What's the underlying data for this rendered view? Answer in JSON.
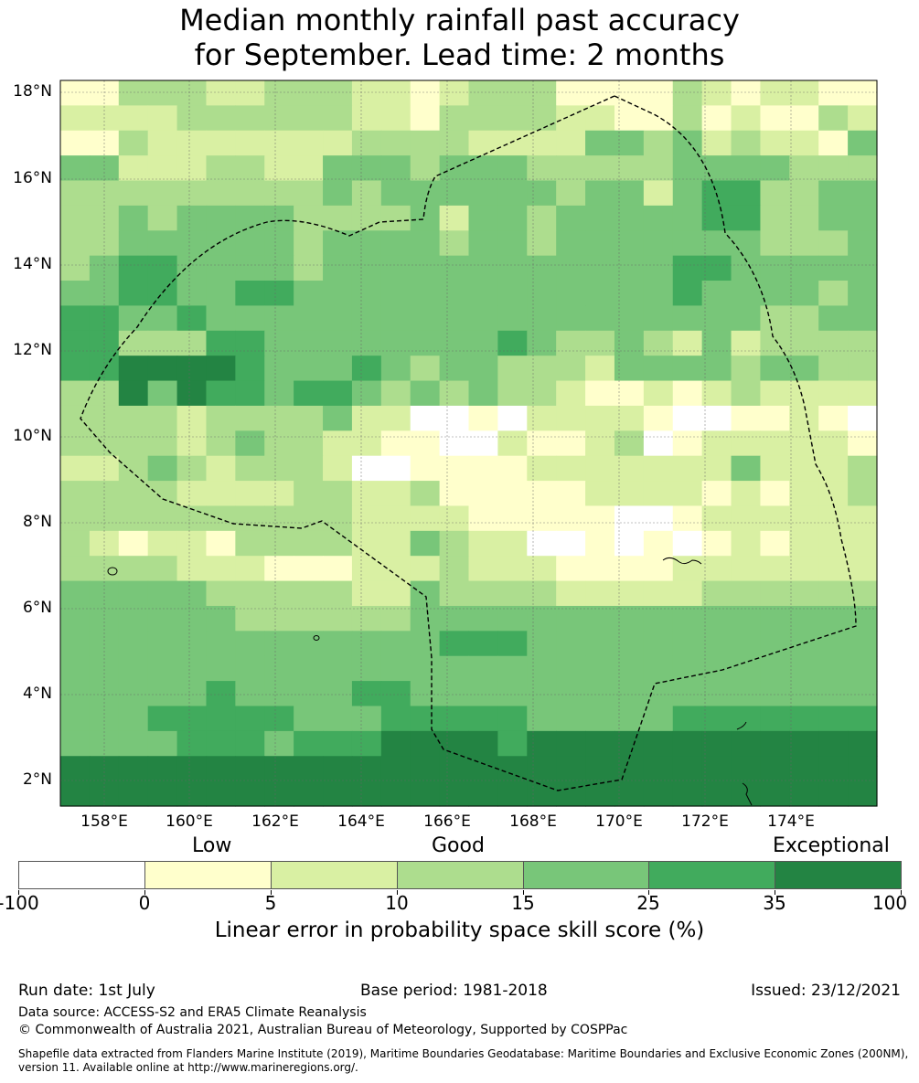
{
  "title": {
    "line1": "Median monthly rainfall past accuracy",
    "line2": "for September. Lead time: 2 months"
  },
  "map": {
    "lat_labels": [
      "18°N",
      "16°N",
      "14°N",
      "12°N",
      "10°N",
      "8°N",
      "6°N",
      "4°N",
      "2°N"
    ],
    "lon_labels": [
      "158°E",
      "160°E",
      "162°E",
      "164°E",
      "166°E",
      "168°E",
      "170°E",
      "172°E",
      "174°E"
    ],
    "boundary": "dashed EEZ outline (Marshall Islands)",
    "grid": "dotted graticule every 2°"
  },
  "legend": {
    "categories": [
      "Low",
      "Good",
      "Exceptional"
    ],
    "bins": [
      {
        "from": "-100",
        "to": "0",
        "color": "#ffffff"
      },
      {
        "from": "0",
        "to": "5",
        "color": "#ffffcc"
      },
      {
        "from": "5",
        "to": "10",
        "color": "#d9f0a3"
      },
      {
        "from": "10",
        "to": "15",
        "color": "#addd8e"
      },
      {
        "from": "15",
        "to": "25",
        "color": "#78c679"
      },
      {
        "from": "25",
        "to": "35",
        "color": "#41ab5d"
      },
      {
        "from": "35",
        "to": "100",
        "color": "#238443"
      }
    ],
    "tick_labels": [
      "-100",
      "0",
      "5",
      "10",
      "15",
      "25",
      "35",
      "100"
    ],
    "axis_title": "Linear error in probability space skill score (%)"
  },
  "footer": {
    "run_date": "Run date: 1st July",
    "base_period": "Base period: 1981-2018",
    "issued": "Issued: 23/12/2021",
    "data_source": "Data source: ACCESS-S2 and ERA5 Climate Reanalysis",
    "copyright": "© Commonwealth of Australia 2021, Australian Bureau of Meteorology, Supported by COSPPac",
    "shapefile_line1": "Shapefile data extracted from Flanders Marine Institute (2019), Maritime Boundaries Geodatabase: Maritime Boundaries and Exclusive Economic Zones (200NM),",
    "shapefile_line2": "version 11. Available online at http://www.marineregions.org/."
  }
}
